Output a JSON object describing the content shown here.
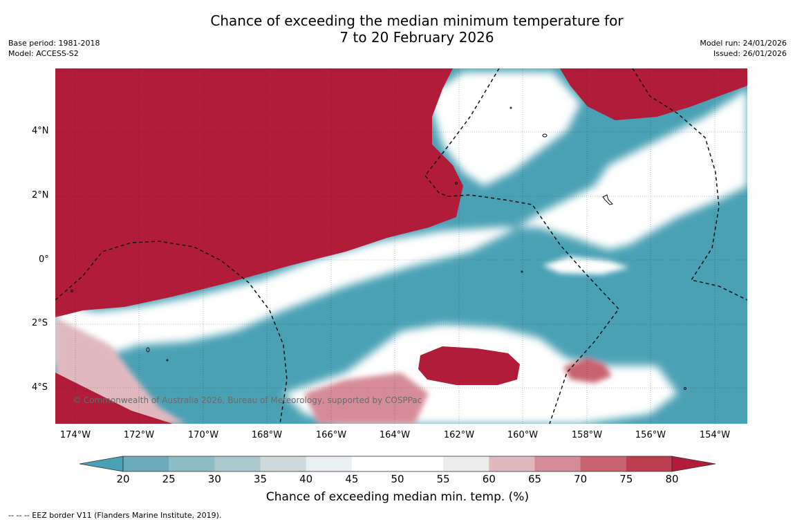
{
  "title": {
    "line1": "Chance of exceeding the median minimum temperature for",
    "line2": "7 to 20 February 2026"
  },
  "meta_left": {
    "base_period": "Base period: 1981-2018",
    "model": "Model: ACCESS-S2"
  },
  "meta_right": {
    "model_run": "Model run: 24/01/2026",
    "issued": "Issued: 26/01/2026"
  },
  "map": {
    "lat_labels": [
      "4°N",
      "2°N",
      "0°",
      "2°S",
      "4°S"
    ],
    "lon_labels": [
      "174°W",
      "172°W",
      "170°W",
      "168°W",
      "166°W",
      "164°W",
      "162°W",
      "160°W",
      "158°W",
      "156°W",
      "154°W"
    ],
    "copyright": "© Commonwealth of Australia 2026, Bureau of Meteorology, supported by COSPPac",
    "colors": {
      "above_high": "#b11c38",
      "below_low": "#4ba1b4",
      "neutral": "#ffffff"
    }
  },
  "colorbar": {
    "ticks": [
      "20",
      "25",
      "30",
      "35",
      "40",
      "45",
      "50",
      "55",
      "60",
      "65",
      "70",
      "75",
      "80"
    ],
    "label": "Chance of exceeding median min. temp. (%)",
    "colors": [
      "#4ba1b4",
      "#6eabba",
      "#8cbcc6",
      "#aac8cd",
      "#cdd9dc",
      "#eaf0f1",
      "#ffffff",
      "#ffffff",
      "#ececec",
      "#e0b9bf",
      "#d58c98",
      "#c8636f",
      "#bd3e4f",
      "#b11c38"
    ]
  },
  "footer": {
    "legend_text": "--  --  -- EEZ border V11 (Flanders Marine Institute, 2019)."
  }
}
